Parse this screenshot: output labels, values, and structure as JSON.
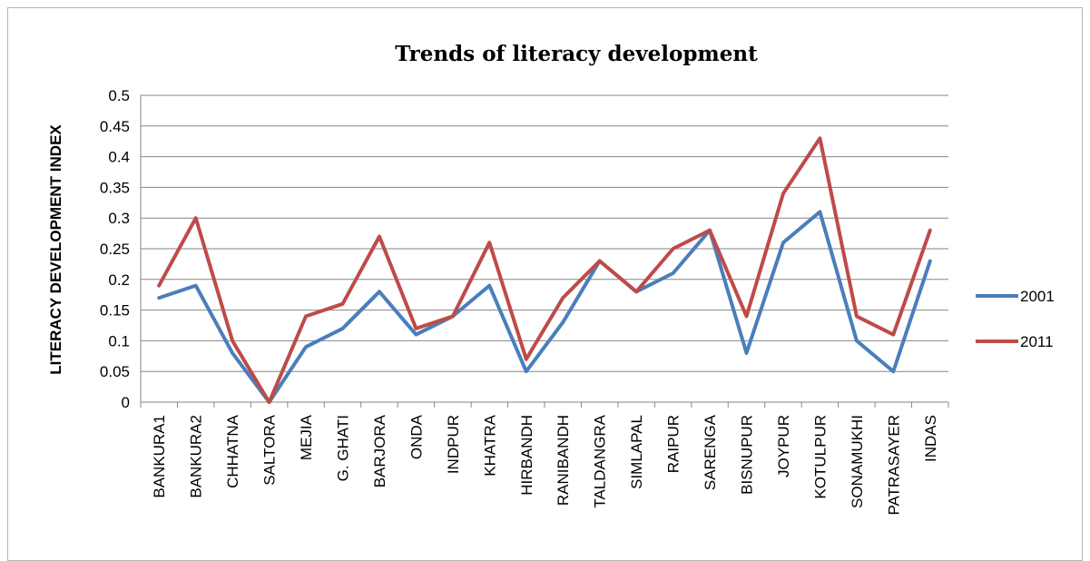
{
  "chart_data": {
    "type": "line",
    "title": "Trends of literacy development",
    "xlabel": "",
    "ylabel": "LITERACY DEVELOPMENT INDEX",
    "ylim": [
      0,
      0.5
    ],
    "yticks": [
      "0",
      "0.05",
      "0.1",
      "0.15",
      "0.2",
      "0.25",
      "0.3",
      "0.35",
      "0.4",
      "0.45",
      "0.5"
    ],
    "grid": "horizontal",
    "legend_position": "right",
    "categories": [
      "BANKURA1",
      "BANKURA2",
      "CHHATNA",
      "SALTORA",
      "MEJIA",
      "G. GHATI",
      "BARJORA",
      "ONDA",
      "INDPUR",
      "KHATRA",
      "HIRBANDH",
      "RANIBANDH",
      "TALDANGRA",
      "SIMLAPAL",
      "RAIPUR",
      "SARENGA",
      "BISNUPUR",
      "JOYPUR",
      "KOTULPUR",
      "SONAMUKHI",
      "PATRASAYER",
      "INDAS"
    ],
    "series": [
      {
        "name": "2001",
        "color": "#4a7ebb",
        "values": [
          0.17,
          0.19,
          0.08,
          0.0,
          0.09,
          0.12,
          0.18,
          0.11,
          0.14,
          0.19,
          0.05,
          0.13,
          0.23,
          0.18,
          0.21,
          0.28,
          0.08,
          0.26,
          0.31,
          0.1,
          0.05,
          0.23
        ]
      },
      {
        "name": "2011",
        "color": "#be4b48",
        "values": [
          0.19,
          0.3,
          0.1,
          0.0,
          0.14,
          0.16,
          0.27,
          0.12,
          0.14,
          0.26,
          0.07,
          0.17,
          0.23,
          0.18,
          0.25,
          0.28,
          0.14,
          0.34,
          0.43,
          0.14,
          0.11,
          0.28
        ]
      }
    ]
  }
}
